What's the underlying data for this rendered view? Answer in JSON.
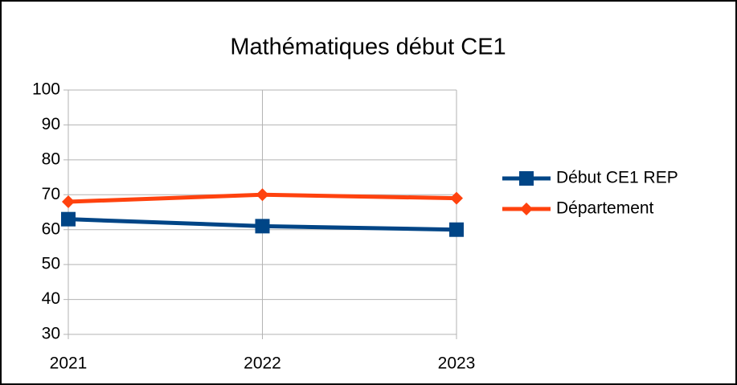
{
  "chart_data": {
    "type": "line",
    "title": "Mathématiques début CE1",
    "categories": [
      "2021",
      "2022",
      "2023"
    ],
    "series": [
      {
        "name": "Début CE1 REP",
        "color": "#004586",
        "marker": "square",
        "values": [
          63,
          61,
          60
        ]
      },
      {
        "name": "Département",
        "color": "#ff420e",
        "marker": "diamond",
        "values": [
          68,
          70,
          69
        ]
      }
    ],
    "ylim": [
      30,
      100
    ],
    "yticks": [
      30,
      40,
      50,
      60,
      70,
      80,
      90,
      100
    ],
    "grid": true,
    "legend": "right"
  }
}
